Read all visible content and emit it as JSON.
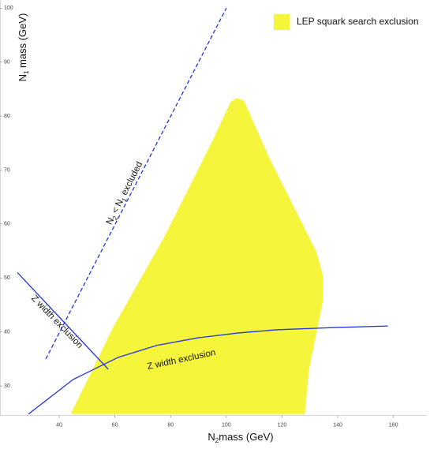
{
  "chart_data": {
    "type": "region",
    "xlabel": [
      "N",
      "2",
      "mass (GeV)"
    ],
    "ylabel": [
      "N",
      "1",
      " mass (GeV)"
    ],
    "xlim": [
      22,
      172
    ],
    "ylim": [
      24.5,
      101.5
    ],
    "xticks": [
      40,
      60,
      80,
      100,
      120,
      140,
      160
    ],
    "yticks": [
      30,
      40,
      50,
      60,
      70,
      80,
      90,
      100
    ],
    "legend": "upper right",
    "series": [
      {
        "name": "LEP squark search exclusion",
        "color": "#f5f53c",
        "kind": "area",
        "x": [
          44.8,
          59.8,
          78.2,
          95.2,
          101.8,
          103.7,
          106,
          115,
          126.4,
          132,
          134.3,
          134.3,
          132,
          129.2,
          127.8
        ],
        "y": [
          25,
          40.8,
          57.6,
          75.1,
          82.4,
          83.1,
          82.7,
          72.2,
          60.5,
          54.7,
          50.3,
          45.9,
          40.1,
          32.8,
          25
        ]
      },
      {
        "color": "#2233dd",
        "kind": "dashed",
        "x": [
          35.2,
          100
        ],
        "y": [
          35,
          100
        ]
      },
      {
        "color": "#2233dd",
        "kind": "line",
        "x": [
          29,
          45,
          61.2,
          75,
          89.6,
          104,
          117.9,
          138,
          158
        ],
        "y": [
          24.8,
          31.2,
          35.3,
          37.5,
          38.9,
          39.8,
          40.4,
          40.8,
          41.1
        ]
      },
      {
        "color": "#2233dd",
        "kind": "line",
        "x": [
          25,
          57.6
        ],
        "y": [
          51,
          33.1
        ]
      }
    ],
    "annotations": [
      {
        "parts": [
          "N",
          "2",
          " < N",
          "1",
          " excluded"
        ]
      },
      {
        "parts": [
          "Z width exclusion"
        ]
      },
      {
        "parts": [
          "Z width exclusion"
        ]
      }
    ]
  }
}
